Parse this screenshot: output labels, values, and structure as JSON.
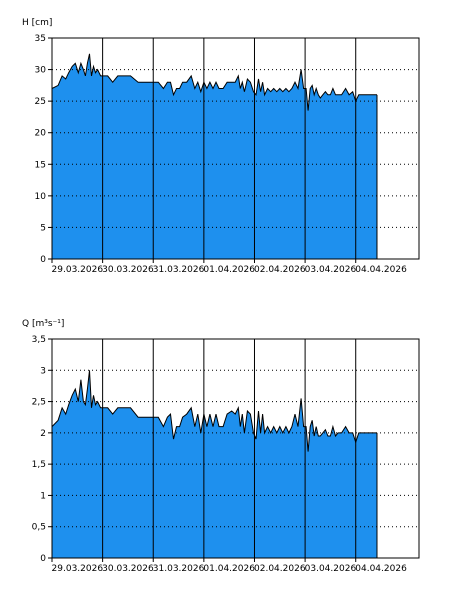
{
  "colors": {
    "area": "#1e90ee",
    "line": "#000000",
    "grid": "#000000",
    "background": "#ffffff"
  },
  "chart_data": [
    {
      "type": "area",
      "ylabel": "H [cm]",
      "ylim": [
        0,
        35
      ],
      "yticks": [
        "0",
        "5",
        "10",
        "15",
        "20",
        "25",
        "30",
        "35"
      ],
      "ytick_values": [
        0,
        5,
        10,
        15,
        20,
        25,
        30,
        35
      ],
      "xlim": [
        0,
        7.25
      ],
      "xtick_labels": [
        "29.03.2026",
        "30.03.2026",
        "31.03.2026",
        "01.04.2026",
        "02.04.2026",
        "03.04.2026",
        "04.04.2026"
      ],
      "day_lines": [
        1,
        2,
        3,
        4,
        5,
        6
      ],
      "grid": "horizontal dotted",
      "series": [
        {
          "x": [
            0,
            0.12,
            0.2,
            0.27,
            0.33,
            0.4,
            0.46,
            0.52,
            0.57,
            0.62,
            0.66,
            0.7,
            0.74,
            0.78,
            0.82,
            0.86,
            0.9,
            0.96,
            1.1,
            1.2,
            1.3,
            1.4,
            1.55,
            1.7,
            1.8,
            2.1,
            2.2,
            2.28,
            2.34,
            2.4,
            2.46,
            2.52,
            2.58,
            2.66,
            2.75,
            2.82,
            2.88,
            2.94,
            3.0,
            3.06,
            3.12,
            3.18,
            3.24,
            3.3,
            3.38,
            3.46,
            3.55,
            3.62,
            3.68,
            3.72,
            3.76,
            3.8,
            3.86,
            3.92,
            3.98,
            4.03,
            4.08,
            4.12,
            4.16,
            4.2,
            4.26,
            4.32,
            4.38,
            4.44,
            4.5,
            4.56,
            4.62,
            4.68,
            4.74,
            4.8,
            4.86,
            4.92,
            4.97,
            5.02,
            5.06,
            5.1,
            5.14,
            5.18,
            5.22,
            5.26,
            5.3,
            5.35,
            5.4,
            5.45,
            5.5,
            5.55,
            5.6,
            5.65,
            5.72,
            5.8,
            5.87,
            5.94,
            6.0,
            6.06,
            6.12,
            6.2,
            6.3,
            6.42
          ],
          "y": [
            27,
            27.5,
            29,
            28.5,
            29.5,
            30.5,
            31,
            29.5,
            31,
            30,
            29,
            31,
            32.5,
            29,
            30.5,
            29.5,
            30,
            29,
            29,
            28,
            29,
            29,
            29,
            28,
            28,
            28,
            27,
            28,
            28,
            26,
            27,
            27,
            28,
            28,
            29,
            27,
            28,
            26.5,
            28,
            27,
            28,
            27,
            28,
            27,
            27,
            28,
            28,
            28,
            29,
            27,
            28,
            26.5,
            28.5,
            28,
            26.5,
            26,
            28.5,
            26.5,
            28,
            26,
            27,
            26.5,
            27,
            26.5,
            27,
            26.5,
            27,
            26.5,
            27,
            28,
            27,
            30,
            27,
            27,
            23.5,
            27,
            27.5,
            26,
            27,
            26,
            25.5,
            26,
            26.5,
            26,
            26,
            27,
            26,
            26,
            26,
            27,
            26,
            26.5,
            25,
            26,
            26,
            26,
            26,
            26
          ]
        }
      ]
    },
    {
      "type": "area",
      "ylabel": "Q [m³s⁻¹]",
      "ylim": [
        0,
        3.5
      ],
      "yticks": [
        "0",
        "0,5",
        "1",
        "1,5",
        "2",
        "2,5",
        "3",
        "3,5"
      ],
      "ytick_values": [
        0,
        0.5,
        1,
        1.5,
        2,
        2.5,
        3,
        3.5
      ],
      "xlim": [
        0,
        7.25
      ],
      "xtick_labels": [
        "29.03.2026",
        "30.03.2026",
        "31.03.2026",
        "01.04.2026",
        "02.04.2026",
        "03.04.2026",
        "04.04.2026"
      ],
      "day_lines": [
        1,
        2,
        3,
        4,
        5,
        6
      ],
      "grid": "horizontal dotted",
      "series": [
        {
          "x": [
            0,
            0.12,
            0.2,
            0.27,
            0.33,
            0.4,
            0.46,
            0.52,
            0.57,
            0.62,
            0.66,
            0.7,
            0.74,
            0.78,
            0.82,
            0.86,
            0.9,
            0.96,
            1.1,
            1.2,
            1.3,
            1.4,
            1.55,
            1.7,
            1.8,
            2.1,
            2.2,
            2.28,
            2.34,
            2.4,
            2.46,
            2.52,
            2.58,
            2.66,
            2.75,
            2.82,
            2.88,
            2.94,
            3.0,
            3.06,
            3.12,
            3.18,
            3.24,
            3.3,
            3.38,
            3.46,
            3.55,
            3.62,
            3.68,
            3.72,
            3.76,
            3.8,
            3.86,
            3.92,
            3.98,
            4.03,
            4.08,
            4.12,
            4.16,
            4.2,
            4.26,
            4.32,
            4.38,
            4.44,
            4.5,
            4.56,
            4.62,
            4.68,
            4.74,
            4.8,
            4.86,
            4.92,
            4.97,
            5.02,
            5.06,
            5.1,
            5.14,
            5.18,
            5.22,
            5.26,
            5.3,
            5.35,
            5.4,
            5.45,
            5.5,
            5.55,
            5.6,
            5.65,
            5.72,
            5.8,
            5.87,
            5.94,
            6.0,
            6.06,
            6.12,
            6.2,
            6.3,
            6.42
          ],
          "y": [
            2.1,
            2.2,
            2.4,
            2.3,
            2.45,
            2.6,
            2.7,
            2.5,
            2.85,
            2.5,
            2.45,
            2.7,
            3.0,
            2.4,
            2.6,
            2.45,
            2.5,
            2.4,
            2.4,
            2.3,
            2.4,
            2.4,
            2.4,
            2.25,
            2.25,
            2.25,
            2.1,
            2.25,
            2.3,
            1.9,
            2.1,
            2.1,
            2.25,
            2.3,
            2.4,
            2.1,
            2.3,
            2.0,
            2.3,
            2.1,
            2.3,
            2.1,
            2.3,
            2.1,
            2.1,
            2.3,
            2.35,
            2.3,
            2.4,
            2.1,
            2.3,
            2.0,
            2.35,
            2.3,
            2.0,
            1.9,
            2.35,
            2.0,
            2.3,
            2.0,
            2.1,
            2.0,
            2.1,
            2.0,
            2.1,
            2.0,
            2.1,
            2.0,
            2.1,
            2.3,
            2.1,
            2.55,
            2.1,
            2.1,
            1.7,
            2.1,
            2.2,
            1.95,
            2.1,
            1.95,
            1.95,
            2.0,
            2.05,
            1.95,
            1.95,
            2.1,
            1.95,
            2.0,
            2.0,
            2.1,
            2.0,
            2.0,
            1.85,
            2.0,
            2.0,
            2.0,
            2.0,
            2.0
          ]
        }
      ]
    }
  ]
}
